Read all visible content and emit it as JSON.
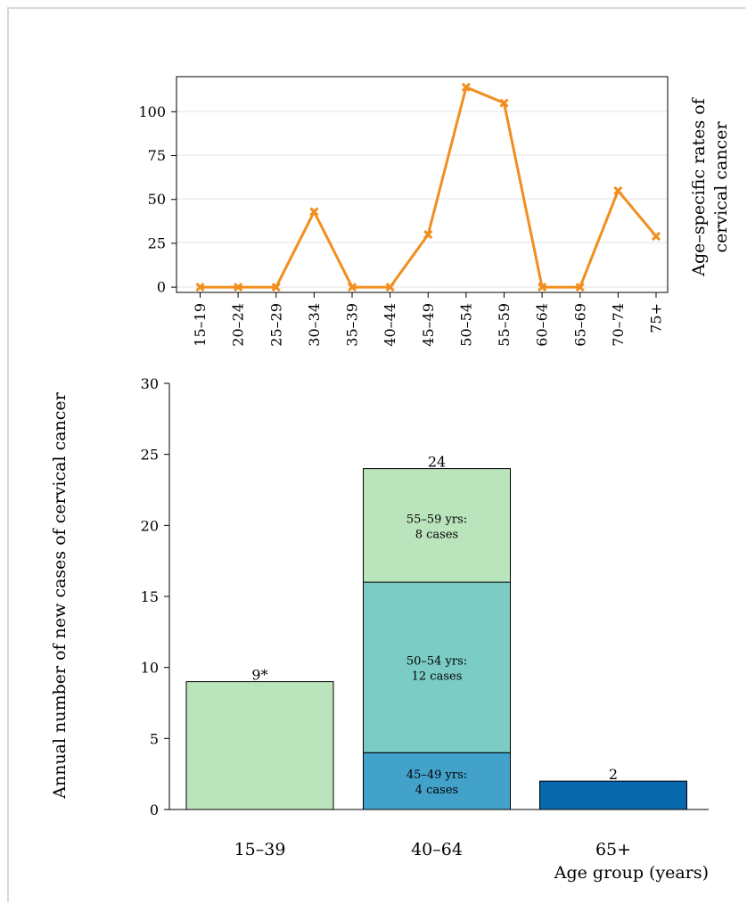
{
  "chart_data": [
    {
      "type": "line",
      "x": [
        "15–19",
        "20–24",
        "25–29",
        "30–34",
        "35–39",
        "40–44",
        "45–49",
        "50–54",
        "55–59",
        "60–64",
        "65–69",
        "70–74",
        "75+"
      ],
      "series": [
        {
          "values": [
            0,
            0,
            0,
            43,
            0,
            0,
            30,
            114,
            105,
            0,
            0,
            55,
            29
          ],
          "color": "#f28e1e",
          "marker": "x"
        }
      ],
      "ylabel_line1": "Age–specific rates of",
      "ylabel_line2": "cervical cancer",
      "ylim": [
        -3,
        120
      ],
      "yticks": [
        0,
        25,
        50,
        75,
        100
      ],
      "grid": true
    },
    {
      "type": "bar",
      "stacked": true,
      "categories": [
        "15–39",
        "40–64",
        "65+"
      ],
      "segments": [
        [
          {
            "value": 9,
            "color": "#bae4bc"
          }
        ],
        [
          {
            "value": 4,
            "color": "#43a2ca",
            "label_line1": "45–49 yrs:",
            "label_line2": "4 cases"
          },
          {
            "value": 12,
            "color": "#7bccc4",
            "label_line1": "50–54 yrs:",
            "label_line2": "12 cases"
          },
          {
            "value": 8,
            "color": "#bae4bc",
            "label_line1": "55–59 yrs:",
            "label_line2": "8 cases"
          }
        ],
        [
          {
            "value": 2,
            "color": "#0868ac"
          }
        ]
      ],
      "totals": [
        "9*",
        "24",
        "2"
      ],
      "ylabel": "Annual number of new cases of cervical cancer",
      "xlabel": "Age group (years)",
      "ylim": [
        0,
        30
      ],
      "yticks": [
        0,
        5,
        10,
        15,
        20,
        25,
        30
      ]
    }
  ]
}
